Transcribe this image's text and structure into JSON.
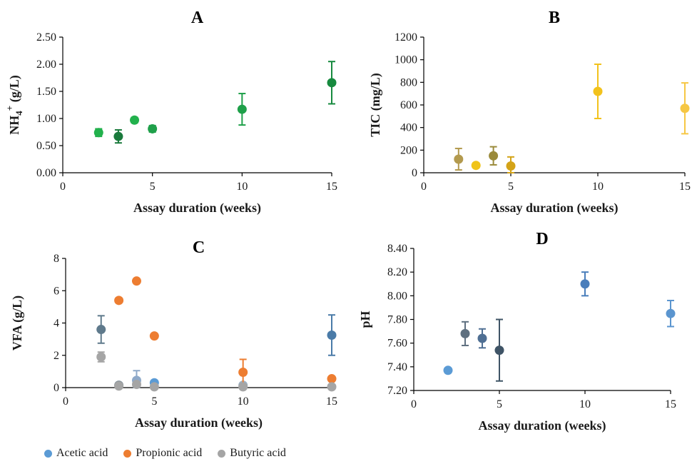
{
  "chart_data": [
    {
      "type": "scatter",
      "title": "A",
      "xlabel": "Assay duration (weeks)",
      "ylabel": "NH4+ (g/L)",
      "ylabel_main": "NH",
      "ylabel_sub": "4",
      "ylabel_sup": "+",
      "ylabel_rest": " (g/L)",
      "xlim": [
        0,
        15
      ],
      "ylim": [
        0,
        2.5
      ],
      "xticks": [
        0,
        5,
        10,
        15
      ],
      "yticks": [
        "0.00",
        "0.50",
        "1.00",
        "1.50",
        "2.00",
        "2.50"
      ],
      "grid": false,
      "series": [
        {
          "color": "#159a45",
          "points": [
            {
              "x": 2,
              "y": 0.74,
              "err": 0.07,
              "color": "#22b14c"
            },
            {
              "x": 3.1,
              "y": 0.67,
              "err": 0.12,
              "color": "#1a7a3c"
            },
            {
              "x": 4,
              "y": 0.97,
              "err": 0.05,
              "color": "#22b14c"
            },
            {
              "x": 5,
              "y": 0.81,
              "err": 0.06,
              "color": "#1fa04a"
            },
            {
              "x": 10,
              "y": 1.17,
              "err": 0.29,
              "color": "#1fa04a"
            },
            {
              "x": 15,
              "y": 1.66,
              "err": 0.39,
              "color": "#178a3f"
            }
          ]
        }
      ]
    },
    {
      "type": "scatter",
      "title": "B",
      "xlabel": "Assay duration (weeks)",
      "ylabel": "TIC (mg/L)",
      "xlim": [
        0,
        15
      ],
      "ylim": [
        0,
        1200
      ],
      "xticks": [
        0,
        5,
        10,
        15
      ],
      "yticks": [
        "0",
        "200",
        "400",
        "600",
        "800",
        "1000",
        "1200"
      ],
      "grid": false,
      "series": [
        {
          "color": "#c9a227",
          "points": [
            {
              "x": 2,
              "y": 120,
              "err": 95,
              "color": "#b39a4e"
            },
            {
              "x": 3,
              "y": 65,
              "err": 0,
              "color": "#f0c419"
            },
            {
              "x": 4,
              "y": 150,
              "err": 80,
              "color": "#9a8a3a"
            },
            {
              "x": 5,
              "y": 60,
              "err": 80,
              "color": "#d4a317"
            },
            {
              "x": 10,
              "y": 720,
              "err": 240,
              "color": "#f2c21c"
            },
            {
              "x": 15,
              "y": 570,
              "err": 225,
              "color": "#f6c744"
            }
          ]
        }
      ]
    },
    {
      "type": "scatter",
      "title": "C",
      "xlabel": "Assay duration (weeks)",
      "ylabel": "VFA (g/L)",
      "xlim": [
        0,
        15
      ],
      "ylim": [
        0,
        8
      ],
      "xticks": [
        0,
        5,
        10,
        15
      ],
      "yticks": [
        "0",
        "2",
        "4",
        "6",
        "8"
      ],
      "grid": false,
      "series": [
        {
          "name": "Acetic acid",
          "color": "#5b9bd5",
          "points": [
            {
              "x": 2,
              "y": 3.6,
              "err": 0.85,
              "color": "#5f7a8c"
            },
            {
              "x": 3,
              "y": 0.15,
              "err": 0.05,
              "color": "#7f8e99"
            },
            {
              "x": 4,
              "y": 0.45,
              "err": 0.6,
              "color": "#8ea9c9"
            },
            {
              "x": 5,
              "y": 0.3,
              "err": 0.1,
              "color": "#5b9bd5"
            },
            {
              "x": 10,
              "y": 0.15,
              "err": 0.1,
              "color": "#9bb0c4"
            },
            {
              "x": 15,
              "y": 3.25,
              "err": 1.25,
              "color": "#4a7ba8"
            }
          ]
        },
        {
          "name": "Propionic acid",
          "color": "#ed7d31",
          "points": [
            {
              "x": 3,
              "y": 5.4,
              "err": 0,
              "color": "#ed7d31"
            },
            {
              "x": 4,
              "y": 6.6,
              "err": 0,
              "color": "#ed7d31"
            },
            {
              "x": 5,
              "y": 3.2,
              "err": 0,
              "color": "#ed7d31"
            },
            {
              "x": 10,
              "y": 0.95,
              "err": 0.8,
              "color": "#ed7d31"
            },
            {
              "x": 15,
              "y": 0.55,
              "err": 0,
              "color": "#ed7d31"
            }
          ]
        },
        {
          "name": "Butyric acid",
          "color": "#a5a5a5",
          "points": [
            {
              "x": 2,
              "y": 1.9,
              "err": 0.3,
              "color": "#a5a5a5"
            },
            {
              "x": 3,
              "y": 0.1,
              "err": 0.05,
              "color": "#a5a5a5"
            },
            {
              "x": 4,
              "y": 0.2,
              "err": 0.05,
              "color": "#a5a5a5"
            },
            {
              "x": 5,
              "y": 0.05,
              "err": 0.03,
              "color": "#a5a5a5"
            },
            {
              "x": 10,
              "y": 0.05,
              "err": 0.03,
              "color": "#a5a5a5"
            },
            {
              "x": 15,
              "y": 0.05,
              "err": 0.03,
              "color": "#a5a5a5"
            }
          ]
        }
      ]
    },
    {
      "type": "scatter",
      "title": "D",
      "xlabel": "Assay duration (weeks)",
      "ylabel": "pH",
      "xlim": [
        0,
        15
      ],
      "ylim": [
        7.2,
        8.4
      ],
      "xticks": [
        0,
        5,
        10,
        15
      ],
      "yticks": [
        "7.20",
        "7.40",
        "7.60",
        "7.80",
        "8.00",
        "8.20",
        "8.40"
      ],
      "grid": false,
      "series": [
        {
          "color": "#4a7ebb",
          "points": [
            {
              "x": 2,
              "y": 7.37,
              "err": 0.02,
              "color": "#5b9bd5"
            },
            {
              "x": 3,
              "y": 7.68,
              "err": 0.1,
              "color": "#5f7080"
            },
            {
              "x": 4,
              "y": 7.64,
              "err": 0.08,
              "color": "#4f6f93"
            },
            {
              "x": 5,
              "y": 7.54,
              "err": 0.26,
              "color": "#3f5466"
            },
            {
              "x": 10,
              "y": 8.1,
              "err": 0.1,
              "color": "#4a7ebb"
            },
            {
              "x": 15,
              "y": 7.85,
              "err": 0.11,
              "color": "#5b95cf"
            }
          ]
        }
      ]
    }
  ],
  "legend": {
    "items": [
      {
        "label": "Acetic acid",
        "color": "#5b9bd5"
      },
      {
        "label": "Propionic acid",
        "color": "#ed7d31"
      },
      {
        "label": "Butyric acid",
        "color": "#a5a5a5"
      }
    ]
  }
}
